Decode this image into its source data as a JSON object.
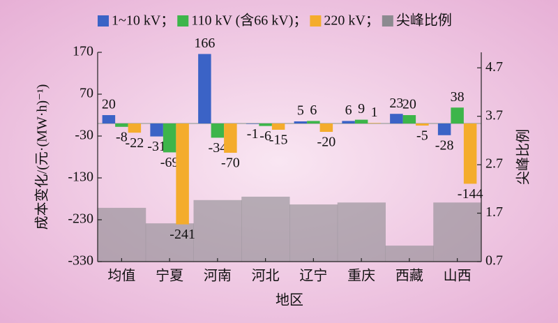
{
  "chart_data": {
    "type": "bar",
    "categories": [
      "均值",
      "宁夏",
      "河南",
      "河北",
      "辽宁",
      "重庆",
      "西藏",
      "山西"
    ],
    "x_label": "地区",
    "y_label": "成本变化/(元·(MW·h)⁻¹)",
    "y2_label": "尖峰比例",
    "series": [
      {
        "name": "1~10 kV；",
        "color": "#3b63c6",
        "values": [
          20,
          -31,
          166,
          -1,
          5,
          6,
          23,
          -28
        ]
      },
      {
        "name": "110 kV (含66 kV)；",
        "color": "#3db54a",
        "values": [
          -8,
          -69,
          -34,
          -6,
          6,
          9,
          20,
          38
        ]
      },
      {
        "name": "220 kV；",
        "color": "#f4ac2c",
        "values": [
          -22,
          -241,
          -70,
          -15,
          -20,
          1,
          -5,
          -144
        ]
      },
      {
        "name": "尖峰比例",
        "color": "#8c8a90",
        "axis": "y2",
        "values": [
          1.81,
          1.49,
          1.97,
          2.04,
          1.88,
          1.92,
          1.03,
          1.92
        ]
      }
    ],
    "ylim": [
      -330,
      170
    ],
    "yticks": [
      -330,
      -230,
      -130,
      -30,
      70,
      170
    ],
    "y2lim": [
      0.7,
      5.02
    ],
    "y2ticks": [
      0.7,
      1.7,
      2.7,
      3.7,
      4.7
    ]
  }
}
